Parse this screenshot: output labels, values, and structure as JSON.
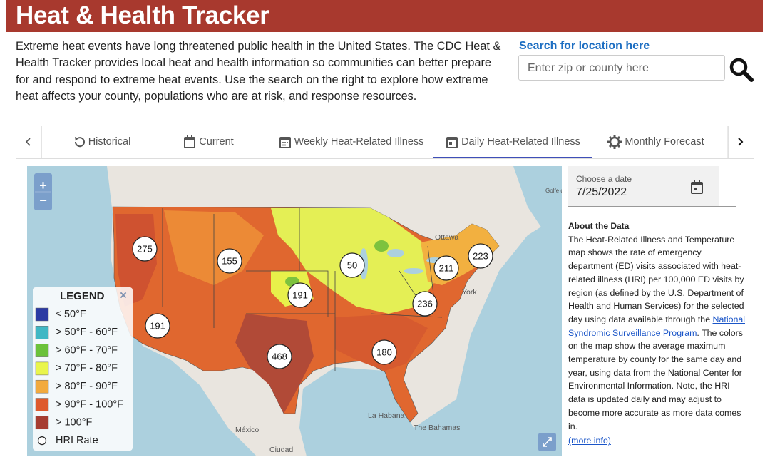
{
  "header": {
    "title": "Heat & Health Tracker"
  },
  "intro": "Extreme heat events have long threatened public health in the United States. The CDC Heat & Health Tracker provides local heat and health information so communities can better prepare for and respond to extreme heat events. Use the search on the right to explore how extreme heat affects your county, populations who are at risk, and response resources.",
  "search": {
    "label": "Search for location here",
    "placeholder": "Enter zip or county here"
  },
  "tabs": [
    {
      "label": "Historical",
      "active": false
    },
    {
      "label": "Current",
      "active": false
    },
    {
      "label": "Weekly Heat-Related Illness",
      "active": false
    },
    {
      "label": "Daily Heat-Related Illness",
      "active": true
    },
    {
      "label": "Monthly Forecast",
      "active": false
    }
  ],
  "map": {
    "zoom_in": "+",
    "zoom_out": "−",
    "places": [
      "Ottawa",
      "York",
      "México",
      "La Habana",
      "The Bahamas",
      "Ciudad",
      "Golfe du Saint-Laurent"
    ],
    "legend": {
      "title": "LEGEND",
      "close": "×",
      "items": [
        {
          "label": "≤ 50°F",
          "color": "#2b3aa3"
        },
        {
          "label": "> 50°F - 60°F",
          "color": "#40b7c4"
        },
        {
          "label": "> 60°F - 70°F",
          "color": "#6cc23a"
        },
        {
          "label": "> 70°F - 80°F",
          "color": "#e9f54c"
        },
        {
          "label": "> 80°F - 90°F",
          "color": "#f2aa3e"
        },
        {
          "label": "> 90°F - 100°F",
          "color": "#de5a2d"
        },
        {
          "label": "> 100°F",
          "color": "#a63d31"
        }
      ],
      "hri": "HRI Rate"
    },
    "clusters": [
      275,
      155,
      50,
      191,
      211,
      223,
      236,
      191,
      468,
      180
    ]
  },
  "sidebar": {
    "date_label": "Choose a date",
    "date": "7/25/2022",
    "about_title": "About the Data",
    "about_before": "The Heat-Related Illness and Temperature map shows the rate of emergency department (ED) visits associated with heat-related illness (HRI) per 100,000 ED visits by region (as defined by the U.S. Department of Health and Human Services) for the selected day using data available through the ",
    "about_link": "National Syndromic Surveillance Program",
    "about_after": ". The colors on the map show the average maximum temperature by county for the same day and year, using data from the National Center for Environmental Information. Note, the HRI data is updated daily and may adjust to become more accurate as more data comes in.",
    "more_info": "(more info)"
  }
}
